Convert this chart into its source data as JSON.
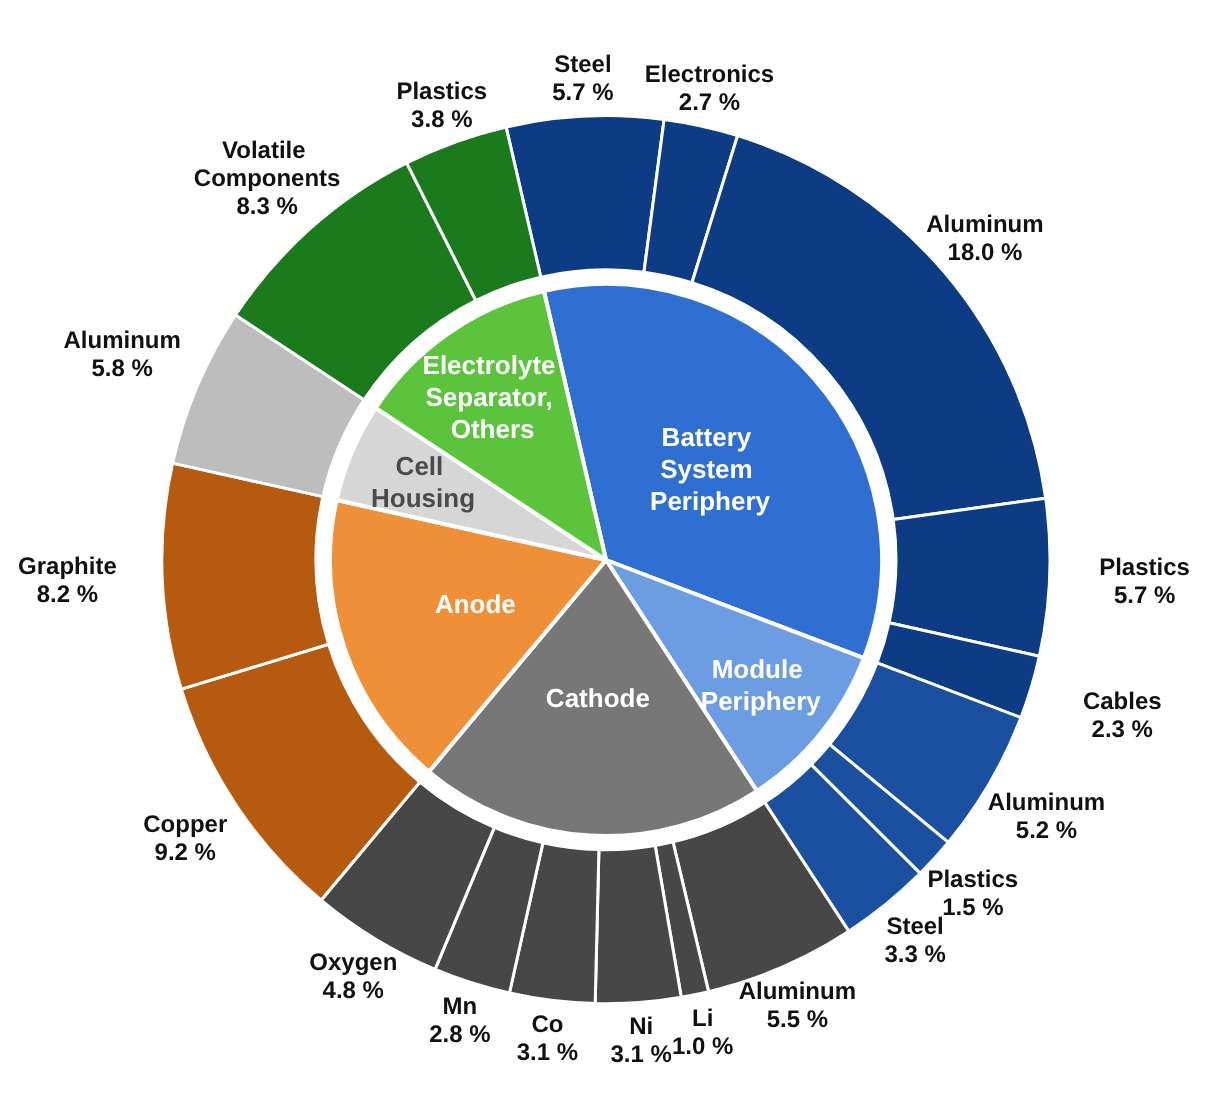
{
  "chart_data": [
    {
      "type": "pie",
      "legend": false,
      "categories": [
        "Battery System Periphery",
        "Module Periphery",
        "Cathode",
        "Anode",
        "Cell Housing",
        "Electrolyte Separator, Others"
      ],
      "values": [
        34.4,
        10.0,
        20.3,
        17.4,
        5.8,
        12.1
      ],
      "colors": [
        "#2f6fd1",
        "#6c9de2",
        "#777777",
        "#ef9038",
        "#d6d6d6",
        "#5cc43c"
      ]
    },
    {
      "type": "donut",
      "legend": false,
      "categories": [
        "Steel",
        "Electronics",
        "Aluminum",
        "Plastics",
        "Cables",
        "Aluminum",
        "Plastics",
        "Steel",
        "Aluminum",
        "Li",
        "Ni",
        "Co",
        "Mn",
        "Oxygen",
        "Copper",
        "Graphite",
        "Aluminum",
        "Volatile Components",
        "Plastics"
      ],
      "values": [
        5.7,
        2.7,
        18.0,
        5.7,
        2.3,
        5.2,
        1.5,
        3.3,
        5.5,
        1.0,
        3.1,
        3.1,
        2.8,
        4.8,
        9.2,
        8.2,
        5.8,
        8.3,
        3.8
      ],
      "value_labels": [
        "5.7 %",
        "2.7 %",
        "18.0 %",
        "5.7 %",
        "2.3 %",
        "5.2 %",
        "1.5 %",
        "3.3 %",
        "5.5 %",
        "1.0 %",
        "3.1 %",
        "3.1 %",
        "2.8 %",
        "4.8 %",
        "9.2 %",
        "8.2 %",
        "5.8 %",
        "8.3 %",
        "3.8 %"
      ],
      "colors": [
        "#0d3c84",
        "#0d3c84",
        "#0d3c84",
        "#0d3c84",
        "#0d3c84",
        "#1b50a0",
        "#1b50a0",
        "#1b50a0",
        "#474747",
        "#474747",
        "#474747",
        "#474747",
        "#474747",
        "#474747",
        "#b55a0f",
        "#b55a0f",
        "#bdbdbd",
        "#1b7a1b",
        "#1b7a1b"
      ]
    }
  ]
}
